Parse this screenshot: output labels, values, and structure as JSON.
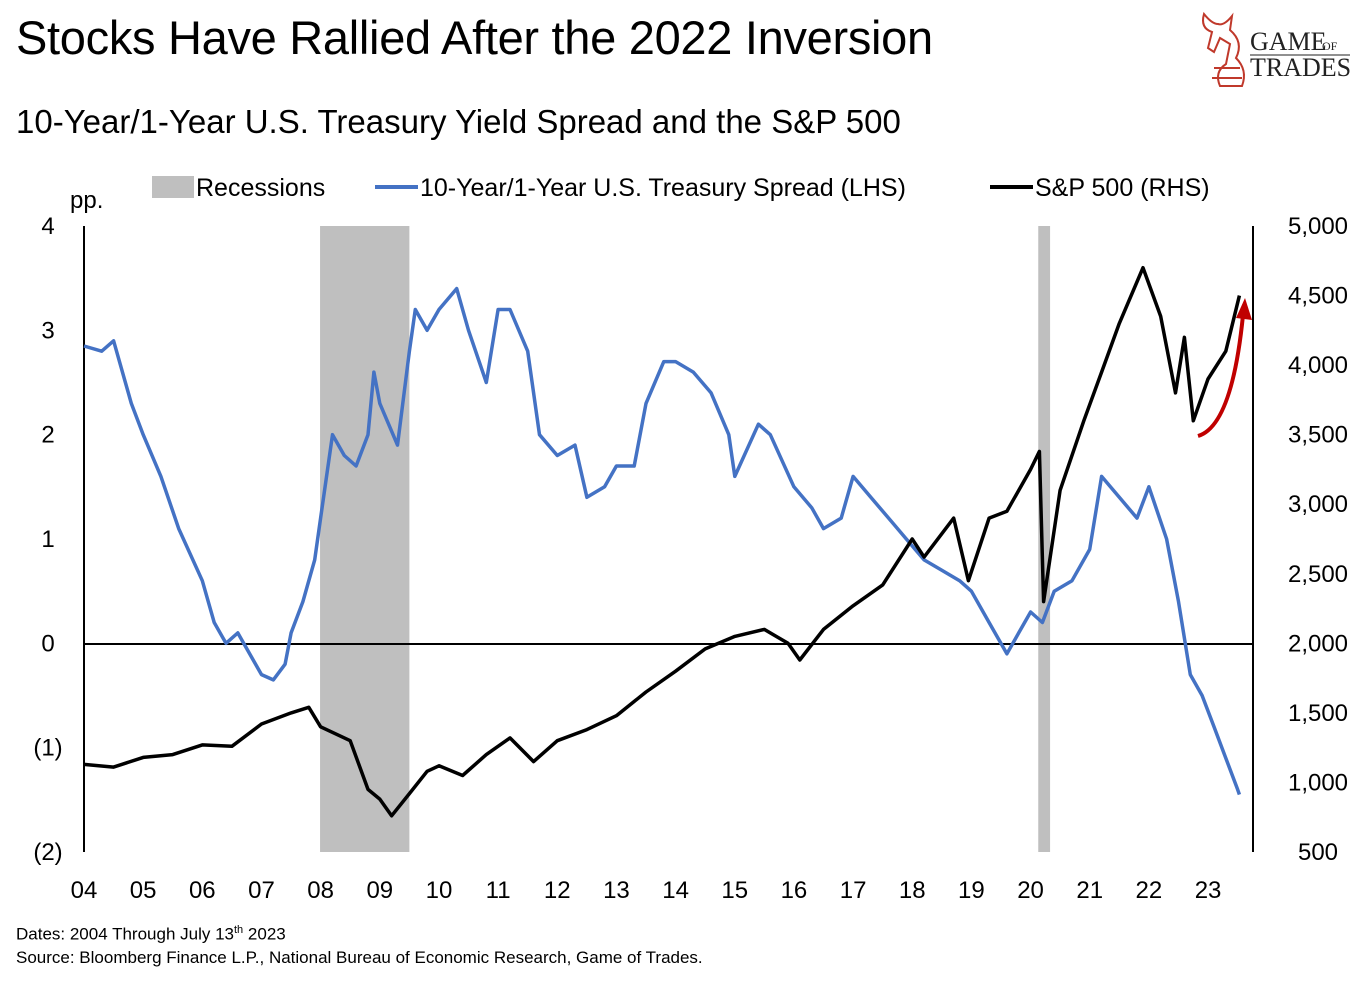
{
  "title": "Stocks Have Rallied After the 2022 Inversion",
  "subtitle": "10-Year/1-Year U.S. Treasury Yield Spread and the S&P 500",
  "logo": {
    "line1": "GAME",
    "line1_small": "OF",
    "line2": "TRADES",
    "color": "#c0392b"
  },
  "footer": {
    "dates_prefix": "Dates: 2004 Through July 13",
    "dates_sup": "th",
    "dates_suffix": " 2023",
    "source": "Source: Bloomberg Finance L.P., National Bureau of Economic Research, Game of Trades."
  },
  "chart_data": {
    "type": "line",
    "legend": {
      "position": "top",
      "items": [
        "Recessions",
        "10-Year/1-Year U.S. Treasury Spread (LHS)",
        "S&P 500 (RHS)"
      ]
    },
    "left_axis": {
      "label": "pp.",
      "range": [
        -2,
        4
      ],
      "ticks": [
        "4",
        "3",
        "2",
        "1",
        "0",
        "(1)",
        "(2)"
      ],
      "tick_values": [
        4,
        3,
        2,
        1,
        0,
        -1,
        -2
      ]
    },
    "right_axis": {
      "range": [
        500,
        5000
      ],
      "ticks": [
        "5,000",
        "4,500",
        "4,000",
        "3,500",
        "3,000",
        "2,500",
        "2,000",
        "1,500",
        "1,000",
        "500"
      ],
      "tick_values": [
        5000,
        4500,
        4000,
        3500,
        3000,
        2500,
        2000,
        1500,
        1000,
        500
      ]
    },
    "x_axis": {
      "range": [
        2004,
        2023.55
      ],
      "ticks": [
        "04",
        "05",
        "06",
        "07",
        "08",
        "09",
        "10",
        "11",
        "12",
        "13",
        "14",
        "15",
        "16",
        "17",
        "18",
        "19",
        "20",
        "21",
        "22",
        "23"
      ]
    },
    "recessions": [
      [
        2007.99,
        2009.5
      ],
      [
        2020.13,
        2020.33
      ]
    ],
    "colors": {
      "spread": "#4472c4",
      "sp500": "#000000",
      "recession": "#bfbfbf",
      "arrow": "#c00000"
    },
    "series": [
      {
        "name": "10-Year/1-Year U.S. Treasury Spread (LHS)",
        "axis": "left",
        "x": [
          2004.0,
          2004.3,
          2004.5,
          2004.8,
          2005.0,
          2005.3,
          2005.6,
          2006.0,
          2006.2,
          2006.4,
          2006.6,
          2007.0,
          2007.2,
          2007.4,
          2007.5,
          2007.7,
          2007.9,
          2008.0,
          2008.2,
          2008.4,
          2008.6,
          2008.8,
          2008.9,
          2009.0,
          2009.3,
          2009.5,
          2009.6,
          2009.8,
          2010.0,
          2010.3,
          2010.5,
          2010.8,
          2011.0,
          2011.2,
          2011.5,
          2011.7,
          2012.0,
          2012.3,
          2012.5,
          2012.8,
          2013.0,
          2013.3,
          2013.5,
          2013.8,
          2014.0,
          2014.3,
          2014.6,
          2014.9,
          2015.0,
          2015.4,
          2015.6,
          2016.0,
          2016.3,
          2016.5,
          2016.8,
          2017.0,
          2017.3,
          2017.6,
          2017.9,
          2018.2,
          2018.5,
          2018.8,
          2019.0,
          2019.3,
          2019.6,
          2019.8,
          2020.0,
          2020.2,
          2020.4,
          2020.7,
          2021.0,
          2021.2,
          2021.5,
          2021.8,
          2022.0,
          2022.3,
          2022.5,
          2022.7,
          2022.9,
          2023.1,
          2023.3,
          2023.5,
          2023.53
        ],
        "values": [
          2.85,
          2.8,
          2.9,
          2.3,
          2.0,
          1.6,
          1.1,
          0.6,
          0.2,
          0.0,
          0.1,
          -0.3,
          -0.35,
          -0.2,
          0.1,
          0.4,
          0.8,
          1.2,
          2.0,
          1.8,
          1.7,
          2.0,
          2.6,
          2.3,
          1.9,
          2.8,
          3.2,
          3.0,
          3.2,
          3.4,
          3.0,
          2.5,
          3.2,
          3.2,
          2.8,
          2.0,
          1.8,
          1.9,
          1.4,
          1.5,
          1.7,
          1.7,
          2.3,
          2.7,
          2.7,
          2.6,
          2.4,
          2.0,
          1.6,
          2.1,
          2.0,
          1.5,
          1.3,
          1.1,
          1.2,
          1.6,
          1.4,
          1.2,
          1.0,
          0.8,
          0.7,
          0.6,
          0.5,
          0.2,
          -0.1,
          0.1,
          0.3,
          0.2,
          0.5,
          0.6,
          0.9,
          1.6,
          1.4,
          1.2,
          1.5,
          1.0,
          0.4,
          -0.3,
          -0.5,
          -0.8,
          -1.1,
          -1.4,
          -1.45
        ]
      },
      {
        "name": "S&P 500 (RHS)",
        "axis": "right",
        "x": [
          2004.0,
          2004.5,
          2005.0,
          2005.5,
          2006.0,
          2006.5,
          2007.0,
          2007.5,
          2007.8,
          2008.0,
          2008.5,
          2008.8,
          2009.0,
          2009.2,
          2009.5,
          2009.8,
          2010.0,
          2010.4,
          2010.8,
          2011.2,
          2011.6,
          2012.0,
          2012.5,
          2013.0,
          2013.5,
          2014.0,
          2014.5,
          2015.0,
          2015.5,
          2015.9,
          2016.1,
          2016.5,
          2017.0,
          2017.5,
          2018.0,
          2018.2,
          2018.7,
          2018.95,
          2019.3,
          2019.6,
          2020.0,
          2020.15,
          2020.22,
          2020.5,
          2020.9,
          2021.2,
          2021.5,
          2021.9,
          2022.2,
          2022.45,
          2022.6,
          2022.75,
          2023.0,
          2023.3,
          2023.53
        ],
        "values": [
          1130,
          1110,
          1180,
          1200,
          1270,
          1260,
          1420,
          1500,
          1540,
          1400,
          1300,
          950,
          880,
          760,
          920,
          1080,
          1120,
          1050,
          1200,
          1320,
          1150,
          1300,
          1380,
          1480,
          1650,
          1800,
          1960,
          2050,
          2100,
          2000,
          1880,
          2100,
          2270,
          2420,
          2750,
          2620,
          2900,
          2450,
          2900,
          2950,
          3250,
          3380,
          2300,
          3100,
          3600,
          3950,
          4300,
          4700,
          4350,
          3800,
          4200,
          3600,
          3900,
          4100,
          4500
        ]
      }
    ]
  }
}
